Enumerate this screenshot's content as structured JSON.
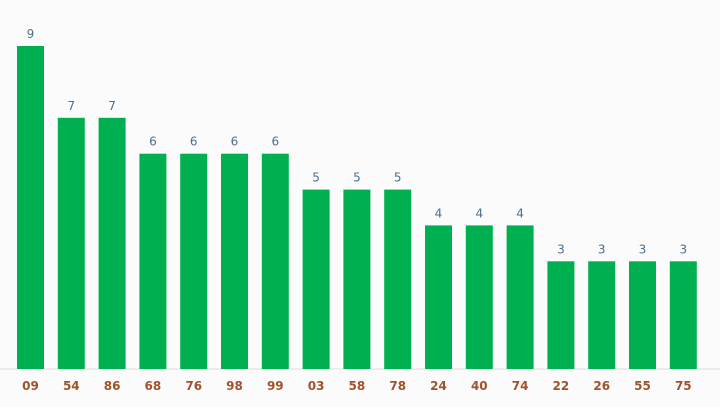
{
  "chart_data": {
    "type": "bar",
    "categories": [
      "09",
      "54",
      "86",
      "68",
      "76",
      "98",
      "99",
      "03",
      "58",
      "78",
      "24",
      "40",
      "74",
      "22",
      "26",
      "55",
      "75"
    ],
    "values": [
      9,
      7,
      7,
      6,
      6,
      6,
      6,
      5,
      5,
      5,
      4,
      4,
      4,
      3,
      3,
      3,
      3
    ],
    "title": "",
    "xlabel": "",
    "ylabel": "",
    "ylim": [
      0,
      9
    ],
    "grid": false,
    "data_labels": true,
    "colors": {
      "bar": "#00b050",
      "data_label": "#4a7090",
      "category_label": "#a0522d",
      "baseline": "#dddddd",
      "background": "#fbfbfb"
    }
  }
}
